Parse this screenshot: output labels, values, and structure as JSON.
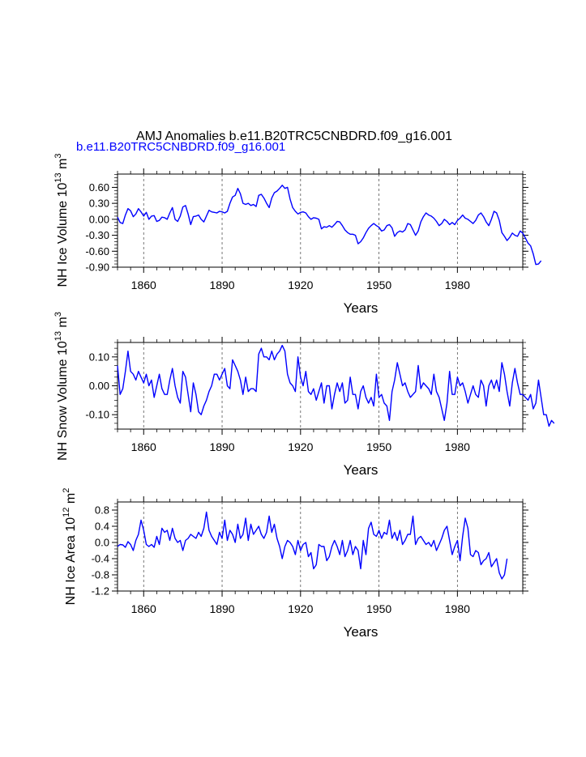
{
  "title": "AMJ Anomalies b.e11.B20TRC5CNBDRD.f09_g16.001",
  "legend_label": "b.e11.B20TRC5CNBDRD.f09_g16.001",
  "colors": {
    "series": "#0000ff",
    "axis": "#000000",
    "refline": "#555555"
  },
  "chart_data": [
    {
      "type": "line",
      "title": "AMJ Anomalies b.e11.B20TRC5CNBDRD.f09_g16.001",
      "series_name": "b.e11.B20TRC5CNBDRD.f09_g16.001",
      "xlabel": "Years",
      "ylabel_main": "NH Ice Volume 10",
      "ylabel_exp": "13",
      "ylabel_unit": " m",
      "ylabel_unit_exp": "3",
      "xlim": [
        1850,
        2005
      ],
      "ylim": [
        -0.9,
        0.85
      ],
      "x_ticks": [
        1860,
        1890,
        1920,
        1950,
        1980
      ],
      "x_tick_labels": [
        "1860",
        "1890",
        "1920",
        "1950",
        "1980"
      ],
      "y_ticks": [
        0.6,
        0.3,
        0.0,
        -0.3,
        -0.6,
        -0.9
      ],
      "y_tick_labels": [
        "0.60",
        "0.30",
        "0.00",
        "-0.30",
        "-0.60",
        "-0.90"
      ],
      "x_start": 1850,
      "values": [
        0.04,
        -0.06,
        -0.08,
        0.08,
        0.2,
        0.16,
        0.05,
        0.1,
        0.2,
        0.14,
        0.06,
        0.13,
        0.0,
        0.06,
        0.07,
        -0.04,
        -0.02,
        0.04,
        0.03,
        0.0,
        0.12,
        0.22,
        0.0,
        -0.04,
        0.06,
        0.23,
        0.26,
        0.1,
        -0.1,
        0.05,
        0.06,
        0.08,
        0.0,
        -0.05,
        0.06,
        0.17,
        0.14,
        0.13,
        0.12,
        0.15,
        0.14,
        0.12,
        0.15,
        0.3,
        0.42,
        0.45,
        0.58,
        0.48,
        0.3,
        0.28,
        0.3,
        0.26,
        0.28,
        0.24,
        0.45,
        0.47,
        0.4,
        0.3,
        0.22,
        0.4,
        0.5,
        0.53,
        0.58,
        0.64,
        0.58,
        0.6,
        0.38,
        0.22,
        0.15,
        0.1,
        0.13,
        0.14,
        0.12,
        0.05,
        0.0,
        0.03,
        0.02,
        0.0,
        -0.18,
        -0.14,
        -0.15,
        -0.12,
        -0.15,
        -0.1,
        -0.04,
        -0.05,
        -0.12,
        -0.2,
        -0.25,
        -0.28,
        -0.28,
        -0.3,
        -0.46,
        -0.42,
        -0.35,
        -0.25,
        -0.17,
        -0.12,
        -0.08,
        -0.12,
        -0.15,
        -0.22,
        -0.2,
        -0.12,
        -0.1,
        -0.16,
        -0.32,
        -0.25,
        -0.22,
        -0.24,
        -0.2,
        -0.08,
        -0.1,
        -0.2,
        -0.3,
        -0.22,
        -0.05,
        0.05,
        0.12,
        0.08,
        0.06,
        0.02,
        -0.04,
        -0.12,
        -0.08,
        0.0,
        -0.04,
        -0.1,
        -0.06,
        -0.1,
        -0.02,
        0.02,
        0.08,
        0.02,
        0.0,
        -0.04,
        -0.08,
        -0.02,
        0.08,
        0.12,
        0.05,
        -0.05,
        -0.12,
        0.0,
        0.15,
        0.12,
        -0.02,
        -0.25,
        -0.32,
        -0.4,
        -0.34,
        -0.26,
        -0.3,
        -0.32,
        -0.22,
        -0.26,
        -0.35,
        -0.45,
        -0.5,
        -0.65,
        -0.85,
        -0.84,
        -0.78
      ]
    },
    {
      "type": "line",
      "xlabel": "Years",
      "ylabel_main": "NH Snow Volume 10",
      "ylabel_exp": "13",
      "ylabel_unit": " m",
      "ylabel_unit_exp": "3",
      "xlim": [
        1850,
        2005
      ],
      "ylim": [
        -0.15,
        0.15
      ],
      "x_ticks": [
        1860,
        1890,
        1920,
        1950,
        1980
      ],
      "x_tick_labels": [
        "1860",
        "1890",
        "1920",
        "1950",
        "1980"
      ],
      "y_ticks": [
        0.1,
        0.0,
        -0.1
      ],
      "y_tick_labels": [
        "0.10",
        "0.00",
        "-0.10"
      ],
      "x_start": 1850,
      "values": [
        0.07,
        -0.03,
        -0.01,
        0.05,
        0.12,
        0.05,
        0.04,
        0.02,
        0.05,
        0.03,
        0.01,
        0.04,
        0.0,
        0.02,
        -0.04,
        0.0,
        0.04,
        -0.01,
        -0.03,
        -0.03,
        0.02,
        0.06,
        0.0,
        -0.04,
        -0.06,
        0.05,
        0.03,
        -0.03,
        -0.09,
        0.01,
        -0.03,
        -0.09,
        -0.1,
        -0.07,
        -0.05,
        -0.02,
        0.0,
        0.04,
        0.04,
        0.02,
        0.04,
        0.06,
        0.0,
        -0.01,
        0.09,
        0.07,
        0.05,
        0.02,
        -0.03,
        0.03,
        -0.02,
        -0.01,
        -0.01,
        -0.02,
        0.11,
        0.13,
        0.1,
        0.1,
        0.09,
        0.12,
        0.09,
        0.11,
        0.12,
        0.14,
        0.12,
        0.04,
        0.01,
        0.0,
        -0.02,
        0.1,
        0.03,
        0.0,
        0.05,
        -0.02,
        -0.03,
        -0.01,
        -0.05,
        -0.02,
        0.01,
        -0.06,
        0.0,
        0.0,
        -0.08,
        -0.03,
        0.01,
        -0.02,
        0.01,
        -0.06,
        -0.05,
        0.03,
        -0.03,
        -0.03,
        -0.08,
        -0.02,
        0.0,
        -0.04,
        -0.06,
        -0.04,
        -0.07,
        0.04,
        -0.04,
        -0.03,
        -0.06,
        -0.07,
        -0.12,
        -0.02,
        0.02,
        0.08,
        0.04,
        0.0,
        0.01,
        -0.02,
        -0.04,
        -0.03,
        -0.02,
        0.07,
        -0.01,
        0.01,
        0.0,
        -0.01,
        -0.03,
        0.04,
        -0.02,
        -0.04,
        -0.08,
        -0.12,
        -0.06,
        0.05,
        -0.03,
        -0.03,
        0.03,
        0.0,
        0.01,
        -0.02,
        -0.06,
        -0.03,
        0.0,
        -0.03,
        -0.04,
        0.02,
        0.0,
        -0.07,
        0.0,
        0.02,
        -0.01,
        0.02,
        -0.02,
        0.08,
        0.04,
        -0.02,
        -0.07,
        0.01,
        0.06,
        0.01,
        -0.03,
        -0.03,
        -0.04,
        -0.05,
        -0.03,
        -0.08,
        -0.06,
        0.02,
        -0.04,
        -0.1,
        -0.1,
        -0.14,
        -0.12,
        -0.13
      ]
    },
    {
      "type": "line",
      "xlabel": "Years",
      "ylabel_main": "NH Ice Area 10",
      "ylabel_exp": "12",
      "ylabel_unit": " m",
      "ylabel_unit_exp": "2",
      "xlim": [
        1850,
        2005
      ],
      "ylim": [
        -1.2,
        1.0
      ],
      "x_ticks": [
        1860,
        1890,
        1920,
        1950,
        1980
      ],
      "x_tick_labels": [
        "1860",
        "1890",
        "1920",
        "1950",
        "1980"
      ],
      "y_ticks": [
        0.8,
        0.4,
        0.0,
        -0.4,
        -0.8,
        -1.2
      ],
      "y_tick_labels": [
        "0.8",
        "0.4",
        "0.0",
        "-0.4",
        "-0.8",
        "-1.2"
      ],
      "x_start": 1850,
      "values": [
        -0.1,
        -0.05,
        -0.06,
        -0.12,
        0.02,
        -0.05,
        -0.2,
        0.05,
        0.2,
        0.55,
        0.3,
        -0.05,
        -0.1,
        -0.05,
        -0.12,
        0.15,
        -0.05,
        0.35,
        0.25,
        0.3,
        0.05,
        0.35,
        0.1,
        0.0,
        0.05,
        -0.2,
        0.05,
        0.1,
        0.2,
        0.15,
        0.1,
        0.25,
        0.15,
        0.35,
        0.75,
        0.3,
        0.15,
        0.05,
        -0.05,
        0.25,
        0.1,
        0.55,
        0.05,
        0.3,
        0.2,
        0.0,
        0.45,
        0.1,
        0.2,
        0.6,
        0.05,
        0.45,
        0.2,
        0.3,
        0.4,
        0.2,
        0.1,
        0.25,
        0.65,
        0.25,
        0.45,
        0.1,
        -0.1,
        -0.4,
        -0.1,
        0.05,
        0.0,
        -0.1,
        -0.3,
        0.05,
        -0.2,
        -0.05,
        0.0,
        -0.35,
        -0.25,
        -0.65,
        -0.55,
        -0.05,
        -0.1,
        -0.1,
        -0.45,
        -0.35,
        -0.1,
        0.05,
        -0.1,
        -0.3,
        0.05,
        -0.35,
        -0.2,
        0.05,
        -0.3,
        -0.1,
        -0.2,
        -0.65,
        0.05,
        -0.3,
        0.35,
        0.5,
        0.2,
        0.15,
        0.3,
        0.1,
        0.25,
        0.2,
        0.55,
        0.1,
        0.25,
        0.05,
        0.3,
        -0.05,
        0.05,
        0.2,
        0.2,
        0.65,
        -0.05,
        0.1,
        0.15,
        0.05,
        -0.05,
        0.0,
        -0.1,
        0.05,
        -0.2,
        -0.05,
        0.1,
        0.3,
        0.4,
        0.05,
        -0.3,
        -0.1,
        0.05,
        -0.45,
        0.15,
        0.6,
        0.35,
        -0.3,
        -0.35,
        -0.2,
        -0.25,
        -0.55,
        -0.45,
        -0.4,
        -0.25,
        -0.6,
        -0.5,
        -0.4,
        -0.75,
        -0.9,
        -0.8,
        -0.4
      ]
    }
  ]
}
